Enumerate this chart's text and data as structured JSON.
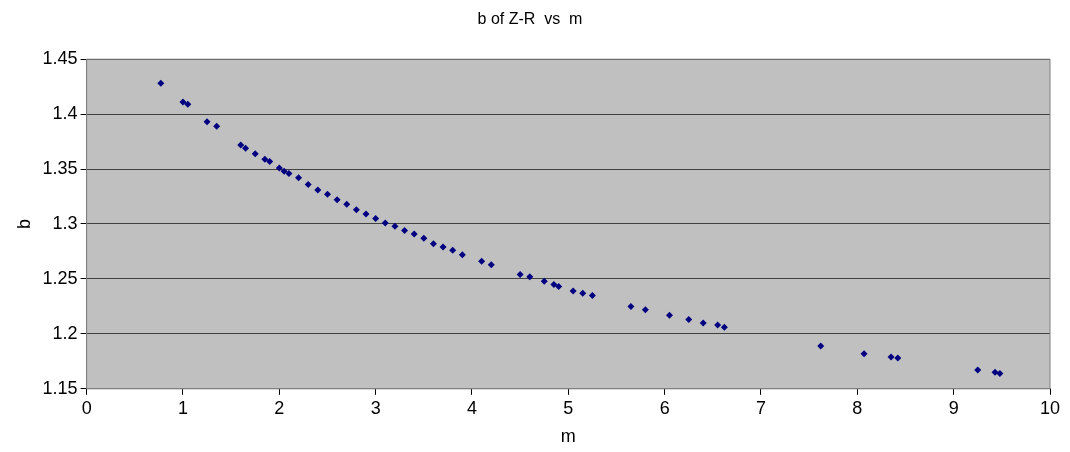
{
  "chart_data": {
    "type": "scatter",
    "title": "b of Z-R  vs  m",
    "xlabel": "m",
    "ylabel": "b",
    "xlim": [
      0,
      10
    ],
    "xticks": [
      0,
      1,
      2,
      3,
      4,
      5,
      6,
      7,
      8,
      9,
      10
    ],
    "ylim": [
      1.15,
      1.45
    ],
    "yticks": [
      1.15,
      1.2,
      1.25,
      1.3,
      1.35,
      1.4,
      1.45
    ],
    "grid": "y",
    "marker": "diamond",
    "legend": false,
    "x": [
      0.77,
      1.0,
      1.05,
      1.25,
      1.35,
      1.6,
      1.65,
      1.75,
      1.85,
      1.9,
      2.0,
      2.05,
      2.1,
      2.2,
      2.3,
      2.4,
      2.5,
      2.6,
      2.7,
      2.8,
      2.9,
      3.0,
      3.1,
      3.2,
      3.3,
      3.4,
      3.5,
      3.6,
      3.7,
      3.8,
      3.9,
      4.1,
      4.2,
      4.5,
      4.6,
      4.75,
      4.85,
      4.9,
      5.05,
      5.15,
      5.25,
      5.65,
      5.8,
      6.05,
      6.25,
      6.4,
      6.55,
      6.62,
      7.62,
      8.07,
      8.35,
      8.42,
      9.25,
      9.43,
      9.48
    ],
    "series": [
      {
        "color": "#000080",
        "values": [
          1.428,
          1.411,
          1.409,
          1.393,
          1.389,
          1.372,
          1.369,
          1.364,
          1.359,
          1.357,
          1.351,
          1.348,
          1.346,
          1.342,
          1.336,
          1.331,
          1.327,
          1.322,
          1.318,
          1.313,
          1.309,
          1.305,
          1.301,
          1.298,
          1.294,
          1.291,
          1.287,
          1.282,
          1.279,
          1.276,
          1.272,
          1.266,
          1.263,
          1.254,
          1.252,
          1.248,
          1.245,
          1.243,
          1.239,
          1.237,
          1.235,
          1.225,
          1.222,
          1.217,
          1.213,
          1.21,
          1.208,
          1.206,
          1.189,
          1.182,
          1.179,
          1.178,
          1.167,
          1.165,
          1.164
        ]
      }
    ]
  }
}
